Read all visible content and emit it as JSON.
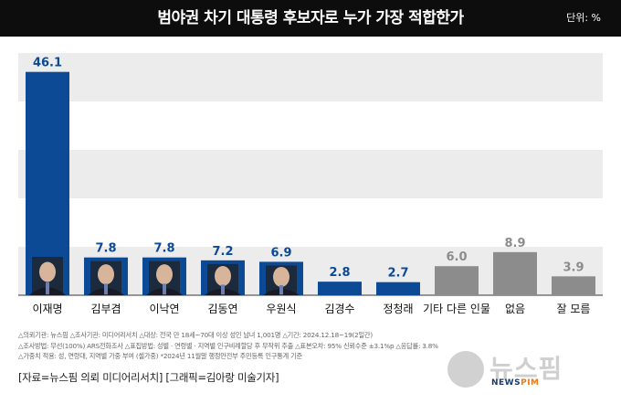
{
  "header": {
    "title": "범야권 차기 대통령 후보자로 누가 가장 적합한가",
    "unit": "단위: %"
  },
  "chart_data": {
    "type": "bar",
    "title": "범야권 차기 대통령 후보자로 누가 가장 적합한가",
    "ylabel": "단위: %",
    "ylim": [
      0,
      50
    ],
    "grid": true,
    "categories": [
      "이재명",
      "김부겸",
      "이낙연",
      "김동연",
      "우원식",
      "김경수",
      "정청래",
      "기타 다른 인물",
      "없음",
      "잘 모름"
    ],
    "values": [
      46.1,
      7.8,
      7.8,
      7.2,
      6.9,
      2.8,
      2.7,
      6.0,
      8.9,
      3.9
    ],
    "value_labels": [
      "46.1",
      "7.8",
      "7.8",
      "7.2",
      "6.9",
      "2.8",
      "2.7",
      "6.0",
      "8.9",
      "3.9"
    ],
    "bar_colors": [
      "#0c4a96",
      "#0c4a96",
      "#0c4a96",
      "#0c4a96",
      "#0c4a96",
      "#0c4a96",
      "#0c4a96",
      "#8c8c8c",
      "#8c8c8c",
      "#8c8c8c"
    ],
    "photo_bars": [
      true,
      true,
      true,
      true,
      true,
      false,
      false,
      false,
      false,
      false
    ],
    "label_colors": {
      "party": "#0c4a96",
      "other": "#8c8c8c"
    }
  },
  "notes": [
    "△의뢰기관: 뉴스핌  △조사기관: 미디어리서치  △대상: 전국 만 18세~70대 이상 성인 남녀 1,001명  △기간: 2024.12.18~19(2일간)",
    "△조사방법: 무선(100%) ARS전화조사  △표집방법: 성별 · 연령별 · 지역별 인구비례할당 후 무작위 추출  △표본오차: 95% 신뢰수준 ±3.1%p  △응답률: 3.8%",
    "△가중치 적용: 성, 연령대, 지역별 가중 부여 (셀가중) *2024년 11월말 행정안전부 주민등록 인구통계 기준"
  ],
  "credit": "[자료=뉴스핌 의뢰 미디어리서치] [그래픽=김아랑 미술기자]",
  "logo": {
    "text": "뉴스핌",
    "sub_news": "NEWS",
    "sub_pim": "PIM"
  }
}
